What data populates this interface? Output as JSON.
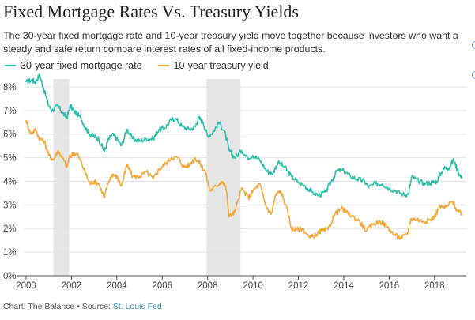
{
  "title": "Fixed Mortgage Rates Vs. Treasury Yields",
  "subtitle": "The 30-year fixed mortgage rate and 10-year treasury yield move together because investors who want a steady and safe return compare interest rates of all fixed-income products.",
  "footer": {
    "credit": "Chart: The Balance • Source: ",
    "source": "St. Louis Fed"
  },
  "colors": {
    "mortgage": "#2bbfaa",
    "treasury": "#f4a83a",
    "recession": "#e6e6e6",
    "grid": "#e3e3e3",
    "accent_dots": "#5aa2d8"
  },
  "chart_data": {
    "type": "line",
    "legend_position": "top-left",
    "grid": true,
    "xlim": [
      2000,
      2019.4
    ],
    "ylim": [
      0,
      8.5
    ],
    "x_ticks": [
      2000,
      2002,
      2004,
      2006,
      2008,
      2010,
      2012,
      2014,
      2016,
      2018
    ],
    "x_tick_labels": [
      "2000",
      "2002",
      "2004",
      "2006",
      "2008",
      "2010",
      "2012",
      "2014",
      "2016",
      "2018"
    ],
    "y_ticks": [
      0,
      1,
      2,
      3,
      4,
      5,
      6,
      7,
      8
    ],
    "y_tick_labels": [
      "0%",
      "1%",
      "2%",
      "3%",
      "4%",
      "5%",
      "6%",
      "7%",
      "8%"
    ],
    "shaded_regions": [
      [
        2001.2,
        2001.9
      ],
      [
        2007.95,
        2009.45
      ]
    ],
    "series": [
      {
        "name": "30-year fixed mortgage rate",
        "color": "#2bbfaa",
        "x": [
          2000.0,
          2000.25,
          2000.4,
          2000.6,
          2000.75,
          2001.0,
          2001.15,
          2001.4,
          2001.6,
          2001.8,
          2001.95,
          2002.1,
          2002.4,
          2002.6,
          2002.8,
          2003.0,
          2003.2,
          2003.45,
          2003.6,
          2003.8,
          2004.0,
          2004.2,
          2004.45,
          2004.7,
          2005.0,
          2005.3,
          2005.6,
          2005.85,
          2006.1,
          2006.4,
          2006.6,
          2006.9,
          2007.2,
          2007.45,
          2007.6,
          2007.8,
          2008.0,
          2008.25,
          2008.5,
          2008.75,
          2008.95,
          2009.2,
          2009.5,
          2009.75,
          2010.0,
          2010.3,
          2010.6,
          2010.85,
          2011.1,
          2011.4,
          2011.7,
          2012.0,
          2012.3,
          2012.6,
          2012.9,
          2013.2,
          2013.45,
          2013.7,
          2014.0,
          2014.3,
          2014.6,
          2014.9,
          2015.1,
          2015.4,
          2015.7,
          2016.0,
          2016.3,
          2016.6,
          2016.85,
          2017.0,
          2017.3,
          2017.6,
          2017.9,
          2018.1,
          2018.4,
          2018.6,
          2018.85,
          2019.0,
          2019.2
        ],
        "values": [
          8.2,
          8.3,
          8.2,
          8.5,
          8.0,
          7.2,
          7.0,
          7.2,
          6.9,
          6.7,
          7.2,
          7.0,
          6.7,
          6.3,
          6.0,
          5.9,
          5.8,
          5.25,
          5.7,
          6.0,
          5.8,
          5.5,
          6.2,
          5.8,
          5.7,
          5.8,
          5.8,
          6.2,
          6.25,
          6.6,
          6.65,
          6.3,
          6.2,
          6.3,
          6.7,
          6.5,
          5.9,
          6.1,
          6.5,
          6.1,
          5.3,
          5.0,
          5.3,
          5.0,
          5.1,
          4.9,
          4.45,
          4.3,
          4.8,
          4.6,
          4.2,
          3.95,
          3.8,
          3.55,
          3.4,
          3.55,
          4.0,
          4.45,
          4.45,
          4.2,
          4.1,
          4.0,
          3.75,
          3.9,
          3.9,
          3.7,
          3.6,
          3.45,
          3.45,
          4.2,
          4.0,
          3.9,
          3.95,
          4.0,
          4.55,
          4.55,
          4.9,
          4.5,
          4.1
        ]
      },
      {
        "name": "10-year treasury yield",
        "color": "#f4a83a",
        "x": [
          2000.0,
          2000.2,
          2000.4,
          2000.6,
          2000.8,
          2001.0,
          2001.2,
          2001.4,
          2001.6,
          2001.8,
          2001.9,
          2002.1,
          2002.3,
          2002.6,
          2002.8,
          2003.0,
          2003.2,
          2003.45,
          2003.6,
          2003.8,
          2004.0,
          2004.2,
          2004.45,
          2004.7,
          2005.0,
          2005.3,
          2005.6,
          2005.85,
          2006.1,
          2006.4,
          2006.7,
          2006.95,
          2007.2,
          2007.45,
          2007.7,
          2007.9,
          2008.1,
          2008.4,
          2008.6,
          2008.8,
          2008.95,
          2009.2,
          2009.5,
          2009.8,
          2010.0,
          2010.3,
          2010.55,
          2010.8,
          2011.0,
          2011.2,
          2011.45,
          2011.7,
          2011.9,
          2012.2,
          2012.5,
          2012.8,
          2013.0,
          2013.3,
          2013.6,
          2013.9,
          2014.1,
          2014.4,
          2014.7,
          2015.0,
          2015.3,
          2015.6,
          2015.9,
          2016.2,
          2016.5,
          2016.8,
          2016.95,
          2017.2,
          2017.5,
          2017.8,
          2018.0,
          2018.2,
          2018.5,
          2018.8,
          2019.0,
          2019.2
        ],
        "values": [
          6.6,
          6.0,
          6.2,
          5.8,
          5.7,
          5.1,
          4.9,
          5.3,
          5.0,
          4.6,
          5.0,
          5.2,
          5.1,
          4.4,
          3.9,
          4.0,
          3.9,
          3.3,
          3.9,
          4.3,
          4.2,
          3.8,
          4.7,
          4.2,
          4.2,
          4.4,
          4.1,
          4.5,
          4.7,
          5.0,
          5.0,
          4.6,
          4.7,
          5.0,
          4.7,
          4.4,
          3.6,
          3.8,
          4.0,
          3.8,
          2.5,
          2.7,
          3.7,
          3.3,
          3.6,
          3.9,
          3.0,
          2.6,
          3.4,
          3.6,
          3.0,
          2.0,
          1.95,
          2.0,
          1.6,
          1.75,
          1.9,
          1.95,
          2.6,
          2.85,
          2.7,
          2.5,
          2.3,
          1.9,
          2.2,
          2.3,
          2.1,
          1.75,
          1.6,
          1.75,
          2.4,
          2.4,
          2.3,
          2.35,
          2.5,
          2.9,
          2.9,
          3.15,
          2.75,
          2.6
        ]
      }
    ]
  }
}
